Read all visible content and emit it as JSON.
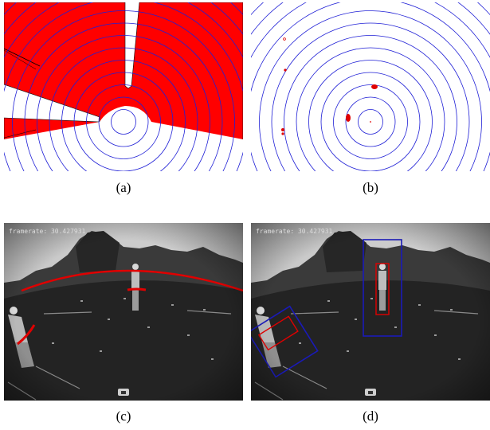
{
  "colors": {
    "ring": "#1f1fd6",
    "occupancy_fill": "#ff0000",
    "detection": "#e00000",
    "box_outer": "#1a1ab8",
    "box_inner": "#e00000"
  },
  "panels": [
    {
      "id": "a",
      "caption": "(a)"
    },
    {
      "id": "b",
      "caption": "(b)"
    },
    {
      "id": "c",
      "caption": "(c)",
      "overlay_text": "framerate: 30.427931"
    },
    {
      "id": "d",
      "caption": "(d)",
      "overlay_text": "framerate: 30.427931"
    }
  ]
}
